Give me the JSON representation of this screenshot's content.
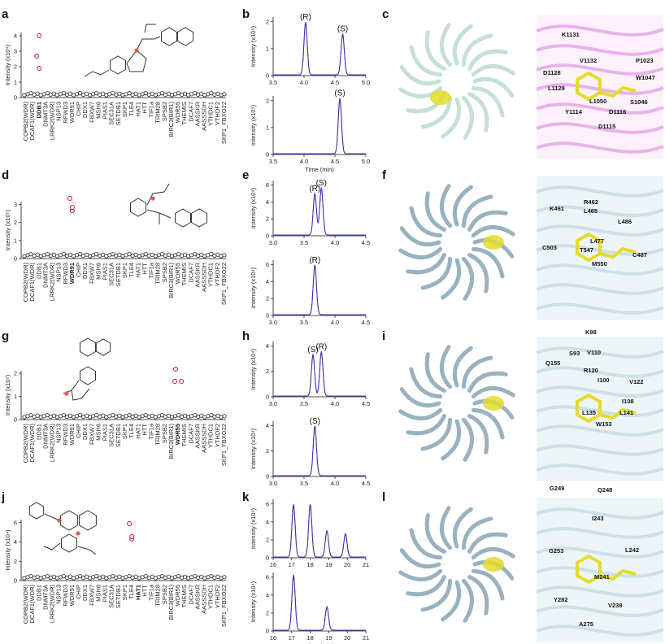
{
  "figure": {
    "scatter_panels": [
      {
        "label": "a",
        "ylabel": "Intensity (x10⁴)",
        "yticks": [
          "0",
          "1",
          "2",
          "3",
          "4"
        ],
        "xcats": [
          "COPB2(WDR)",
          "DCAF1(WDR)",
          "DDB1",
          "DNMT3A",
          "LRRK2(WDR)",
          "NSP13",
          "RFWD3",
          "WDR91",
          "CHIP",
          "DDX1",
          "FBXW7",
          "MSH6",
          "PIAS1",
          "SEC31A",
          "SETDB1",
          "SKP1",
          "TLE4",
          "HAT1",
          "HTT",
          "TIF1a",
          "TRIM28",
          "SPSB2",
          "BIRC3(BIR1)",
          "WDR55",
          "THEMIS",
          "DCAF7",
          "AASSKR",
          "AASSSDH",
          "YTHDC1",
          "YTHDF2",
          "SKP1_FBXO22"
        ],
        "highlight": "DDB1"
      },
      {
        "label": "d",
        "ylabel": "Intensity (x10⁵)",
        "yticks": [
          "0",
          "1",
          "2",
          "3"
        ],
        "xcats": [
          "COPB2(WDR)",
          "DCAF1(WDR)",
          "DDB1",
          "DNMT3A",
          "LRRK2(WDR)",
          "NSP13",
          "RFWD3",
          "WDR91",
          "CHIP",
          "DDX1",
          "FBXW7",
          "MSH6",
          "PIAS1",
          "SEC31A",
          "SETDB1",
          "SKP1",
          "TLE4",
          "HAT1",
          "HTT",
          "TIF1a",
          "TRIM28",
          "SPSB2",
          "BIRC3(BIR1)",
          "WDR55",
          "THEMIS",
          "DCAF7",
          "AASSKR",
          "AASSSDH",
          "YTHDC1",
          "YTHDF2",
          "SKP1_FBXO22"
        ],
        "highlight": "WDR91"
      },
      {
        "label": "g",
        "ylabel": "Intensity (x10⁵)",
        "yticks": [
          "0",
          "1",
          "2"
        ],
        "xcats": [
          "COPB2(WDR)",
          "DCAF1(WDR)",
          "DDB1",
          "DNMT3A",
          "LRRK2(WDR)",
          "NSP13",
          "RFWD3",
          "WDR91",
          "CHIP",
          "DDX1",
          "FBXW7",
          "MSH6",
          "PIAS1",
          "SEC31A",
          "SETDB1",
          "SKP1",
          "TLE4",
          "HAT1",
          "HTT",
          "TIF1a",
          "TRIM28",
          "SPSB2",
          "BIRC3(BIR1)",
          "WDR55",
          "THEMIS",
          "DCAF7",
          "AASSKR",
          "AASSSDH",
          "YTHDC1",
          "YTHDF2",
          "SKP1_FBXO22"
        ],
        "highlight": "WDR55"
      },
      {
        "label": "j",
        "ylabel": "Intensity (x10⁴)",
        "yticks": [
          "0",
          "2",
          "4",
          "6"
        ],
        "xcats": [
          "COPB2(WDR)",
          "DCAF1(WDR)",
          "DDB1",
          "DNMT3A",
          "LRRK2(WDR)",
          "NSP13",
          "RFWD3",
          "WDR91",
          "CHIP",
          "DDX1",
          "FBXW7",
          "MSH6",
          "PIAS1",
          "SEC31A",
          "SETDB1",
          "SKP1",
          "TLE4",
          "HAT1",
          "HTT",
          "TIF1a",
          "TRIM28",
          "SPSB2",
          "BIRC3(BIR1)",
          "WDR55",
          "THEMIS",
          "DCAF7",
          "AASSKR",
          "AASSSDH",
          "YTHDC1",
          "YTHDF2",
          "SKP1_FBXO22"
        ],
        "highlight": "HAT1"
      }
    ],
    "chrom_panels": [
      {
        "label": "b",
        "ylabel": "Intensity (x10⁵)",
        "xticks": [
          "3.5",
          "4.0",
          "4.5",
          "5.0"
        ],
        "xlabel": "Time (min)",
        "top_peaks": [
          "(R)",
          "(S)"
        ],
        "bottom_peaks": [
          "(S)"
        ]
      },
      {
        "label": "e",
        "ylabel": "Intensity (x10⁴)",
        "xticks": [
          "3.0",
          "3.5",
          "4.0",
          "4.5"
        ],
        "xlabel": "",
        "top_peaks": [
          "(R)",
          "(S)"
        ],
        "bottom_peaks": [
          "(R)"
        ]
      },
      {
        "label": "h",
        "ylabel": "Intensity (x10⁴)",
        "xticks": [
          "3.0",
          "3.5",
          "4.0",
          "4.5"
        ],
        "xlabel": "",
        "top_peaks": [
          "(S)",
          "(R)"
        ],
        "bottom_peaks": [
          "(S)"
        ]
      },
      {
        "label": "k",
        "ylabel": "Intensity (x10⁴)",
        "xticks": [
          "16",
          "17",
          "18",
          "19",
          "20",
          "21"
        ],
        "xlabel": "Time (min)",
        "top_peaks": [],
        "bottom_peaks": []
      }
    ],
    "structure_panels": [
      {
        "label": "c",
        "residues": [
          "K1131",
          "V1132",
          "P1023",
          "D1128",
          "W1047",
          "L1129",
          "L1050",
          "S1046",
          "Y1114",
          "D1116",
          "D1115"
        ]
      },
      {
        "label": "f",
        "residues": [
          "R462",
          "K461",
          "L465",
          "L486",
          "C503",
          "T547",
          "L477",
          "C487",
          "M550"
        ]
      },
      {
        "label": "i",
        "residues": [
          "K98",
          "S93",
          "Q155",
          "V110",
          "R120",
          "I100",
          "V122",
          "I108",
          "L135",
          "L141",
          "W153"
        ]
      },
      {
        "label": "l",
        "residues": [
          "G249",
          "Q248",
          "I243",
          "G253",
          "L242",
          "M241",
          "Y282",
          "V238",
          "A275"
        ]
      }
    ],
    "colors": {
      "highlight": "#d0142c",
      "marker_red": "#e05a50",
      "trace_blue": "#2b3cb8",
      "trace_red": "#d63a3a",
      "ligand": "#e3dc2a",
      "magenta": "#c040c8",
      "teal": "#8fb9c6"
    }
  }
}
